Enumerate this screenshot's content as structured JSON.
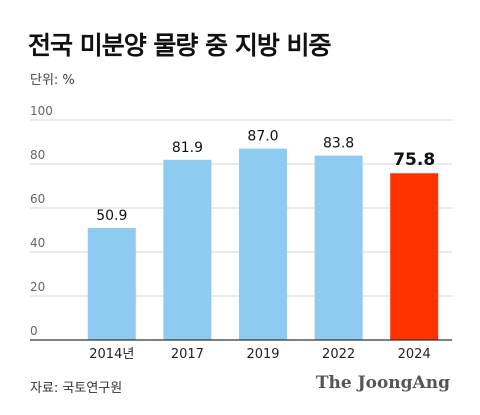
{
  "title": "전국 미분양 물량 중 지방 비중",
  "unit_label": "단위: %",
  "source": "자료: 국토연구원",
  "brand": "The JoongAng",
  "colors": {
    "bar": "#8ECBF0",
    "highlight": "#FF3300",
    "grid": "#D6D6D6",
    "axis": "#333333"
  },
  "chart_data": {
    "type": "bar",
    "categories": [
      "2014년",
      "2017",
      "2019",
      "2022",
      "2024"
    ],
    "values": [
      50.9,
      81.9,
      87.0,
      83.8,
      75.8
    ],
    "value_labels": [
      "50.9",
      "81.9",
      "87.0",
      "83.8",
      "75.8"
    ],
    "highlight_index": 4,
    "ylim": [
      0,
      100
    ],
    "yticks": [
      0,
      20,
      40,
      60,
      80,
      100
    ],
    "grid": true
  }
}
